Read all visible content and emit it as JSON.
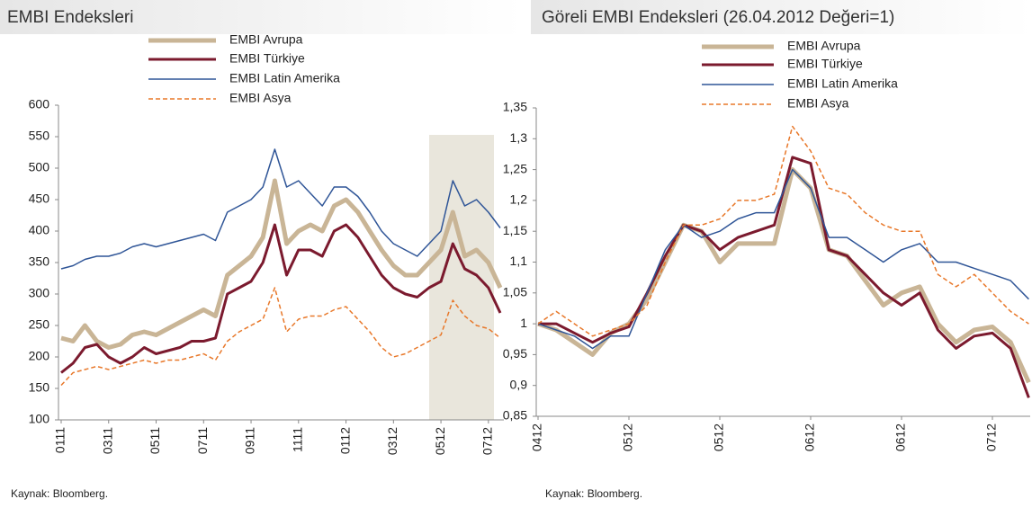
{
  "chart_data": [
    {
      "type": "line",
      "title": "EMBI Endeksleri",
      "source": "Kaynak: Bloomberg.",
      "categories": [
        "0111",
        null,
        null,
        null,
        "0311",
        null,
        null,
        null,
        "0511",
        null,
        null,
        null,
        "0711",
        null,
        null,
        null,
        "0911",
        null,
        null,
        null,
        "1111",
        null,
        null,
        null,
        "0112",
        null,
        null,
        null,
        "0312",
        null,
        null,
        null,
        "0512",
        null,
        null,
        null,
        "0712",
        null
      ],
      "ylim": [
        100,
        600
      ],
      "yticks": [
        100,
        150,
        200,
        250,
        300,
        350,
        400,
        450,
        500,
        550,
        600
      ],
      "series": [
        {
          "name": "EMBI Avrupa",
          "color": "#c9b596",
          "values": [
            230,
            225,
            250,
            225,
            215,
            220,
            235,
            240,
            235,
            245,
            255,
            265,
            275,
            265,
            330,
            345,
            360,
            390,
            480,
            380,
            400,
            410,
            400,
            440,
            450,
            430,
            400,
            370,
            345,
            330,
            330,
            350,
            370,
            430,
            360,
            370,
            350,
            310
          ]
        },
        {
          "name": "EMBI Türkiye",
          "color": "#7b1a2e",
          "values": [
            175,
            190,
            215,
            220,
            200,
            190,
            200,
            215,
            205,
            210,
            215,
            225,
            225,
            230,
            300,
            310,
            320,
            350,
            410,
            330,
            370,
            370,
            360,
            400,
            410,
            390,
            360,
            330,
            310,
            300,
            295,
            310,
            320,
            380,
            340,
            330,
            310,
            270
          ]
        },
        {
          "name": "EMBI Latin Amerika",
          "color": "#2f5597",
          "values": [
            340,
            345,
            355,
            360,
            360,
            365,
            375,
            380,
            375,
            380,
            385,
            390,
            395,
            385,
            430,
            440,
            450,
            470,
            530,
            470,
            480,
            460,
            440,
            470,
            470,
            455,
            430,
            400,
            380,
            370,
            360,
            380,
            400,
            480,
            440,
            450,
            430,
            405
          ]
        },
        {
          "name": "EMBI Asya",
          "color": "#e8782a",
          "dashed": true,
          "values": [
            155,
            175,
            180,
            185,
            180,
            185,
            190,
            195,
            190,
            195,
            195,
            200,
            205,
            195,
            225,
            240,
            250,
            260,
            310,
            240,
            260,
            265,
            265,
            275,
            280,
            260,
            240,
            215,
            200,
            205,
            215,
            225,
            235,
            290,
            265,
            250,
            245,
            230
          ]
        }
      ]
    },
    {
      "type": "line",
      "title": "Göreli EMBI Endeksleri (26.04.2012 Değeri=1)",
      "source": "Kaynak: Bloomberg.",
      "categories": [
        "0412",
        null,
        null,
        null,
        null,
        "0512",
        null,
        null,
        null,
        null,
        "0512",
        null,
        null,
        null,
        null,
        "0612",
        null,
        null,
        null,
        null,
        "0612",
        null,
        null,
        null,
        null,
        "0712",
        null,
        null
      ],
      "ylim": [
        0.85,
        1.35
      ],
      "yticks": [
        {
          "value": 0.85,
          "label": "0,85"
        },
        {
          "value": 0.9,
          "label": "0,9"
        },
        {
          "value": 0.95,
          "label": "0,95"
        },
        1,
        {
          "value": 1.05,
          "label": "1,05"
        },
        {
          "value": 1.1,
          "label": "1,1"
        },
        {
          "value": 1.15,
          "label": "1,15"
        },
        {
          "value": 1.2,
          "label": "1,2"
        },
        {
          "value": 1.25,
          "label": "1,25"
        },
        {
          "value": 1.3,
          "label": "1,3"
        },
        {
          "value": 1.35,
          "label": "1,35"
        }
      ],
      "series": [
        {
          "name": "EMBI Avrupa",
          "color": "#c9b596",
          "values": [
            1.0,
            0.99,
            0.97,
            0.95,
            0.985,
            1.0,
            1.04,
            1.1,
            1.16,
            1.15,
            1.1,
            1.13,
            1.13,
            1.13,
            1.25,
            1.22,
            1.12,
            1.11,
            1.07,
            1.03,
            1.05,
            1.06,
            1.0,
            0.97,
            0.99,
            0.995,
            0.97,
            0.905
          ]
        },
        {
          "name": "EMBI Türkiye",
          "color": "#7b1a2e",
          "values": [
            1.0,
            1.0,
            0.985,
            0.97,
            0.985,
            0.995,
            1.05,
            1.11,
            1.16,
            1.15,
            1.12,
            1.14,
            1.15,
            1.16,
            1.27,
            1.26,
            1.12,
            1.11,
            1.08,
            1.05,
            1.03,
            1.05,
            0.99,
            0.96,
            0.98,
            0.985,
            0.96,
            0.88
          ]
        },
        {
          "name": "EMBI Latin Amerika",
          "color": "#2f5597",
          "values": [
            1.0,
            0.99,
            0.98,
            0.96,
            0.98,
            0.98,
            1.05,
            1.12,
            1.16,
            1.14,
            1.15,
            1.17,
            1.18,
            1.18,
            1.25,
            1.22,
            1.14,
            1.14,
            1.12,
            1.1,
            1.12,
            1.13,
            1.1,
            1.1,
            1.09,
            1.08,
            1.07,
            1.04
          ]
        },
        {
          "name": "EMBI Asya",
          "color": "#e8782a",
          "dashed": true,
          "values": [
            1.0,
            1.02,
            1.0,
            0.98,
            0.99,
            1.0,
            1.03,
            1.1,
            1.16,
            1.16,
            1.17,
            1.2,
            1.2,
            1.21,
            1.32,
            1.28,
            1.22,
            1.21,
            1.18,
            1.16,
            1.15,
            1.15,
            1.08,
            1.06,
            1.08,
            1.05,
            1.02,
            1.0
          ]
        }
      ]
    }
  ]
}
